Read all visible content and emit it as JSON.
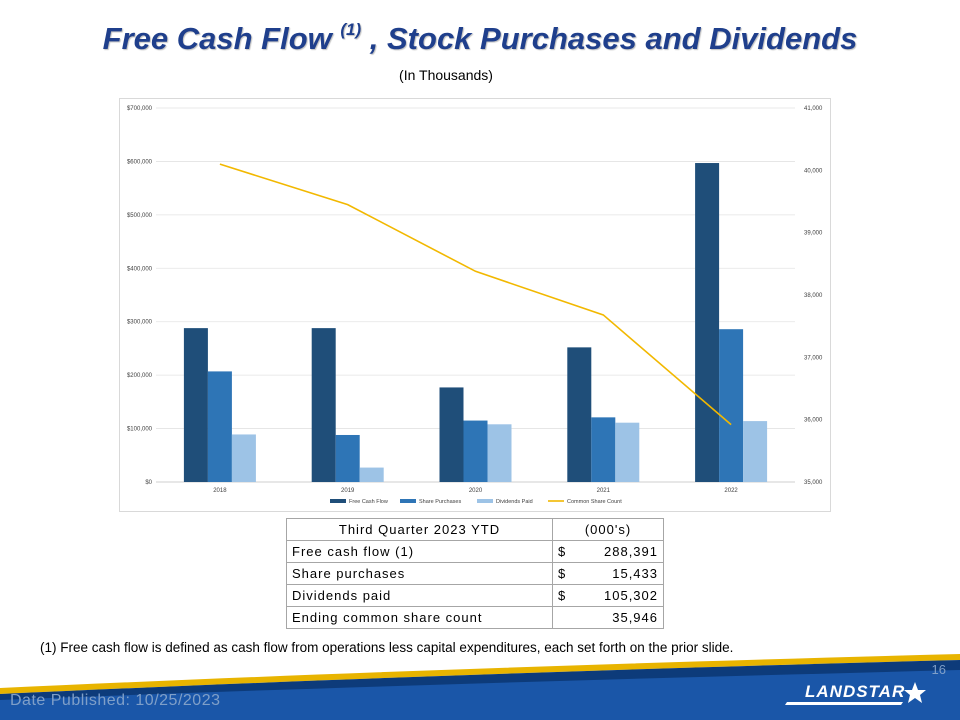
{
  "header": {
    "title_main": "Free Cash Flow ",
    "title_sup": "(1)",
    "title_rest": " , Stock Purchases and Dividends",
    "subtitle": "(In Thousands)"
  },
  "chart_data": {
    "type": "bar+line",
    "categories": [
      "2018",
      "2019",
      "2020",
      "2021",
      "2022"
    ],
    "series": [
      {
        "name": "Free Cash Flow",
        "axis": "left",
        "type": "bar",
        "color": "#1f4e79",
        "values": [
          288000,
          288000,
          177000,
          252000,
          597000
        ]
      },
      {
        "name": "Share Purchases",
        "axis": "left",
        "type": "bar",
        "color": "#2e75b6",
        "values": [
          207000,
          88000,
          115000,
          121000,
          286000
        ]
      },
      {
        "name": "Dividends Paid",
        "axis": "left",
        "type": "bar",
        "color": "#9dc3e6",
        "values": [
          89000,
          27000,
          108000,
          111000,
          114000
        ]
      },
      {
        "name": "Common Share Count",
        "axis": "right",
        "type": "line",
        "color": "#f2b800",
        "values": [
          40100,
          39450,
          38380,
          37680,
          35920
        ]
      }
    ],
    "left_axis": {
      "min": 0,
      "max": 700000,
      "ticks": [
        "$0",
        "$100,000",
        "$200,000",
        "$300,000",
        "$400,000",
        "$500,000",
        "$600,000",
        "$700,000"
      ]
    },
    "right_axis": {
      "min": 35000,
      "max": 41000,
      "ticks": [
        "35,000",
        "36,000",
        "37,000",
        "38,000",
        "39,000",
        "40,000",
        "41,000"
      ]
    },
    "legend": [
      "Free Cash Flow",
      "Share Purchases",
      "Dividends Paid",
      "Common Share Count"
    ],
    "legend_position": "bottom",
    "grid": true
  },
  "summary_table": {
    "header": {
      "label": "Third Quarter 2023 YTD",
      "unit": "(000's)"
    },
    "rows": [
      {
        "label": "Free cash flow (1)",
        "currency": "$",
        "value": "288,391"
      },
      {
        "label": "Share purchases",
        "currency": "$",
        "value": "15,433"
      },
      {
        "label": "Dividends paid",
        "currency": "$",
        "value": "105,302"
      },
      {
        "label": "Ending common share count",
        "currency": "",
        "value": "35,946"
      }
    ]
  },
  "footnote": "(1)  Free cash flow is defined as cash flow from operations less capital expenditures, each set forth on the prior slide.",
  "footer": {
    "date_published": "Date Published:  10/25/2023",
    "page_number": "16",
    "logo_text": "LANDSTAR"
  },
  "colors": {
    "title": "#1f3f8c",
    "footer_dark": "#0d3b7a",
    "footer_accent": "#e8b400"
  }
}
